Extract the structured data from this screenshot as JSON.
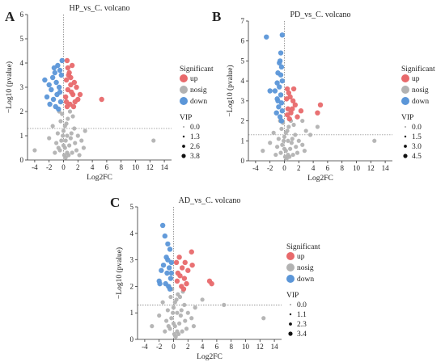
{
  "colors": {
    "up": "#e8696b",
    "nosig": "#b2b2b2",
    "down": "#5b96d8"
  },
  "chart_data": [
    {
      "panel_label": "A",
      "type": "scatter",
      "title": "HP_vs_C. volcano",
      "xlabel": "Log2FC",
      "ylabel": "−Log10 (pvalue)",
      "xlim": [
        -5,
        15
      ],
      "ylim": [
        0,
        6
      ],
      "xticks": [
        -4,
        -2,
        0,
        2,
        4,
        6,
        8,
        10,
        12,
        14
      ],
      "yticks": [
        0,
        1,
        2,
        3,
        4,
        5,
        6
      ],
      "threshold_y": 1.3,
      "threshold_x": 0,
      "legend": {
        "significant_title": "Significant",
        "significant_items": [
          "up",
          "nosig",
          "down"
        ],
        "vip_title": "VIP",
        "vip_items": [
          "0.0",
          "1.3",
          "2.6",
          "3.8"
        ]
      },
      "series": [
        {
          "name": "up",
          "points": [
            [
              0.5,
              4.1
            ],
            [
              0.8,
              3.6
            ],
            [
              1.2,
              3.9
            ],
            [
              0.4,
              3.3
            ],
            [
              1.0,
              3.1
            ],
            [
              1.5,
              3.2
            ],
            [
              0.6,
              2.9
            ],
            [
              1.3,
              2.7
            ],
            [
              2.0,
              2.5
            ],
            [
              0.9,
              2.3
            ],
            [
              1.6,
              2.4
            ],
            [
              0.3,
              2.6
            ],
            [
              1.1,
              2.8
            ],
            [
              5.3,
              2.5
            ],
            [
              0.7,
              3.5
            ],
            [
              1.8,
              3.0
            ],
            [
              0.5,
              2.2
            ],
            [
              1.4,
              2.2
            ],
            [
              2.3,
              2.7
            ],
            [
              1.0,
              3.4
            ],
            [
              0.6,
              3.8
            ],
            [
              0.4,
              2.4
            ]
          ]
        },
        {
          "name": "nosig",
          "points": [
            [
              0.0,
              1.2
            ],
            [
              0.2,
              0.5
            ],
            [
              -0.3,
              0.8
            ],
            [
              0.5,
              1.0
            ],
            [
              0.1,
              0.2
            ],
            [
              -0.5,
              0.4
            ],
            [
              0.8,
              0.6
            ],
            [
              1.0,
              0.9
            ],
            [
              -0.8,
              1.1
            ],
            [
              0.4,
              1.5
            ],
            [
              -0.2,
              1.9
            ],
            [
              0.6,
              1.7
            ],
            [
              1.5,
              1.3
            ],
            [
              -1.0,
              0.7
            ],
            [
              2.0,
              1.0
            ],
            [
              1.8,
              0.4
            ],
            [
              -1.5,
              1.4
            ],
            [
              0.3,
              0.1
            ],
            [
              -0.4,
              1.6
            ],
            [
              1.2,
              0.3
            ],
            [
              2.5,
              0.8
            ],
            [
              3.0,
              1.2
            ],
            [
              1.3,
              1.8
            ],
            [
              -0.6,
              2.0
            ],
            [
              0.9,
              2.0
            ],
            [
              0.0,
              0.6
            ],
            [
              0.2,
              1.4
            ],
            [
              -0.1,
              1.0
            ],
            [
              0.7,
              0.2
            ],
            [
              1.6,
              0.7
            ],
            [
              -1.2,
              0.3
            ],
            [
              -2.0,
              0.9
            ],
            [
              -4.0,
              0.4
            ],
            [
              12.5,
              0.8
            ],
            [
              2.8,
              0.5
            ],
            [
              0.5,
              0.3
            ],
            [
              1.1,
              1.1
            ],
            [
              -0.7,
              0.5
            ],
            [
              0.3,
              0.8
            ],
            [
              2.2,
              0.2
            ]
          ]
        },
        {
          "name": "down",
          "points": [
            [
              -1.5,
              3.4
            ],
            [
              -1.2,
              3.6
            ],
            [
              -0.8,
              3.9
            ],
            [
              -0.5,
              3.7
            ],
            [
              -1.0,
              3.2
            ],
            [
              -0.3,
              3.5
            ],
            [
              -2.0,
              3.1
            ],
            [
              -1.7,
              2.9
            ],
            [
              -0.9,
              2.7
            ],
            [
              -0.6,
              3.0
            ],
            [
              -2.3,
              2.6
            ],
            [
              -1.4,
              2.5
            ],
            [
              -0.4,
              2.4
            ],
            [
              -1.1,
              2.2
            ],
            [
              -0.7,
              2.1
            ],
            [
              -2.6,
              3.3
            ],
            [
              -0.2,
              4.1
            ],
            [
              -1.9,
              2.3
            ],
            [
              -0.5,
              2.8
            ],
            [
              -1.3,
              3.8
            ]
          ]
        }
      ]
    },
    {
      "panel_label": "B",
      "type": "scatter",
      "title": "PD_vs_C. volcano",
      "xlabel": "Log2FC",
      "ylabel": "−Log10 (pvalue)",
      "xlim": [
        -5,
        15
      ],
      "ylim": [
        0,
        7
      ],
      "xticks": [
        -4,
        -2,
        0,
        2,
        4,
        6,
        8,
        10,
        12,
        14
      ],
      "yticks": [
        0,
        1,
        2,
        3,
        4,
        5,
        6,
        7
      ],
      "threshold_y": 1.3,
      "threshold_x": 0,
      "legend": {
        "significant_title": "Significant",
        "significant_items": [
          "up",
          "nosig",
          "down"
        ],
        "vip_title": "VIP",
        "vip_items": [
          "0.0",
          "1.5",
          "3.0",
          "4.5"
        ]
      },
      "series": [
        {
          "name": "up",
          "points": [
            [
              0.4,
              3.6
            ],
            [
              0.8,
              3.2
            ],
            [
              1.2,
              3.0
            ],
            [
              0.5,
              2.6
            ],
            [
              1.5,
              2.8
            ],
            [
              0.9,
              2.4
            ],
            [
              0.3,
              3.1
            ],
            [
              1.8,
              2.2
            ],
            [
              2.3,
              2.5
            ],
            [
              5.0,
              2.8
            ],
            [
              4.6,
              2.4
            ],
            [
              0.6,
              3.4
            ],
            [
              1.1,
              2.6
            ],
            [
              0.7,
              2.1
            ],
            [
              1.3,
              3.6
            ],
            [
              0.4,
              2.3
            ]
          ]
        },
        {
          "name": "nosig",
          "points": [
            [
              0.0,
              1.2
            ],
            [
              0.2,
              0.5
            ],
            [
              -0.3,
              0.8
            ],
            [
              0.5,
              1.0
            ],
            [
              0.1,
              0.2
            ],
            [
              -0.5,
              0.4
            ],
            [
              0.8,
              0.6
            ],
            [
              1.0,
              0.9
            ],
            [
              -0.8,
              1.1
            ],
            [
              0.4,
              1.5
            ],
            [
              -0.2,
              1.9
            ],
            [
              0.6,
              1.7
            ],
            [
              1.5,
              1.3
            ],
            [
              -1.0,
              0.7
            ],
            [
              2.0,
              1.0
            ],
            [
              1.8,
              0.4
            ],
            [
              -1.5,
              1.4
            ],
            [
              0.3,
              0.1
            ],
            [
              -0.4,
              1.6
            ],
            [
              1.2,
              0.3
            ],
            [
              2.5,
              0.8
            ],
            [
              3.0,
              1.5
            ],
            [
              1.3,
              1.8
            ],
            [
              -0.6,
              2.0
            ],
            [
              0.9,
              2.0
            ],
            [
              0.0,
              0.6
            ],
            [
              0.2,
              1.4
            ],
            [
              -0.1,
              1.0
            ],
            [
              0.7,
              0.2
            ],
            [
              1.6,
              0.7
            ],
            [
              -1.2,
              0.3
            ],
            [
              -2.0,
              0.9
            ],
            [
              -3.0,
              0.5
            ],
            [
              12.5,
              1.0
            ],
            [
              2.8,
              0.5
            ],
            [
              0.5,
              0.3
            ],
            [
              1.1,
              1.1
            ],
            [
              4.6,
              1.7
            ],
            [
              2.5,
              2.0
            ],
            [
              3.6,
              1.3
            ]
          ]
        },
        {
          "name": "down",
          "points": [
            [
              -2.5,
              6.2
            ],
            [
              -0.3,
              6.3
            ],
            [
              -0.5,
              5.4
            ],
            [
              -0.7,
              4.9
            ],
            [
              -0.4,
              4.7
            ],
            [
              -0.9,
              4.4
            ],
            [
              -0.3,
              4.0
            ],
            [
              -1.3,
              3.5
            ],
            [
              -0.7,
              3.7
            ],
            [
              -0.5,
              3.3
            ],
            [
              -1.0,
              3.1
            ],
            [
              -0.4,
              2.9
            ],
            [
              -0.8,
              2.7
            ],
            [
              -0.3,
              2.5
            ],
            [
              -1.1,
              2.4
            ],
            [
              -0.6,
              2.2
            ],
            [
              -0.4,
              2.0
            ],
            [
              -2.0,
              3.5
            ],
            [
              -0.5,
              4.3
            ],
            [
              -1.0,
              3.9
            ],
            [
              -0.6,
              5.0
            ],
            [
              -0.9,
              3.0
            ]
          ]
        }
      ]
    },
    {
      "panel_label": "C",
      "type": "scatter",
      "title": "AD_vs_C. volcano",
      "xlabel": "Log2FC",
      "ylabel": "−Log10 (pvalue)",
      "xlim": [
        -5,
        15
      ],
      "ylim": [
        0,
        5
      ],
      "xticks": [
        -4,
        -2,
        0,
        2,
        4,
        6,
        8,
        10,
        12,
        14
      ],
      "yticks": [
        0,
        1,
        2,
        3,
        4,
        5
      ],
      "threshold_y": 1.3,
      "threshold_x": 0,
      "legend": {
        "significant_title": "Significant",
        "significant_items": [
          "up",
          "nosig",
          "down"
        ],
        "vip_title": "VIP",
        "vip_items": [
          "0.0",
          "1.1",
          "2.3",
          "3.4"
        ]
      },
      "series": [
        {
          "name": "up",
          "points": [
            [
              0.4,
              2.9
            ],
            [
              0.8,
              3.1
            ],
            [
              1.2,
              2.7
            ],
            [
              0.6,
              2.5
            ],
            [
              1.5,
              2.3
            ],
            [
              2.5,
              3.3
            ],
            [
              2.6,
              2.8
            ],
            [
              1.1,
              2.0
            ],
            [
              1.8,
              2.1
            ],
            [
              5.0,
              2.2
            ],
            [
              5.3,
              2.1
            ],
            [
              0.5,
              2.2
            ],
            [
              2.0,
              2.6
            ],
            [
              0.9,
              2.4
            ],
            [
              1.4,
              1.9
            ],
            [
              1.6,
              2.9
            ]
          ]
        },
        {
          "name": "nosig",
          "points": [
            [
              0.0,
              1.2
            ],
            [
              0.2,
              0.5
            ],
            [
              -0.3,
              0.8
            ],
            [
              0.5,
              1.0
            ],
            [
              0.1,
              0.2
            ],
            [
              -0.5,
              0.4
            ],
            [
              0.8,
              0.6
            ],
            [
              1.0,
              0.9
            ],
            [
              -0.8,
              1.1
            ],
            [
              0.4,
              1.5
            ],
            [
              -0.2,
              1.9
            ],
            [
              0.6,
              1.7
            ],
            [
              1.5,
              1.3
            ],
            [
              -1.0,
              0.7
            ],
            [
              2.0,
              1.0
            ],
            [
              1.8,
              0.4
            ],
            [
              -1.5,
              1.4
            ],
            [
              0.3,
              0.1
            ],
            [
              -0.4,
              1.6
            ],
            [
              1.2,
              0.3
            ],
            [
              2.5,
              0.8
            ],
            [
              3.0,
              1.2
            ],
            [
              1.3,
              1.8
            ],
            [
              -0.6,
              2.0
            ],
            [
              0.9,
              1.6
            ],
            [
              0.0,
              0.6
            ],
            [
              0.2,
              1.4
            ],
            [
              -0.1,
              1.0
            ],
            [
              0.7,
              0.2
            ],
            [
              1.6,
              0.7
            ],
            [
              -1.2,
              0.3
            ],
            [
              -2.0,
              0.9
            ],
            [
              -3.0,
              0.5
            ],
            [
              12.5,
              0.8
            ],
            [
              7.0,
              1.3
            ],
            [
              4.0,
              1.5
            ],
            [
              2.8,
              0.5
            ],
            [
              0.5,
              0.3
            ],
            [
              1.1,
              1.1
            ],
            [
              -0.7,
              0.5
            ]
          ]
        },
        {
          "name": "down",
          "points": [
            [
              -1.5,
              4.3
            ],
            [
              -1.2,
              3.9
            ],
            [
              -0.8,
              3.6
            ],
            [
              -0.5,
              3.4
            ],
            [
              -1.0,
              3.1
            ],
            [
              -0.3,
              2.9
            ],
            [
              -1.7,
              2.6
            ],
            [
              -0.9,
              2.5
            ],
            [
              -0.6,
              2.7
            ],
            [
              -2.0,
              2.2
            ],
            [
              -0.4,
              2.3
            ],
            [
              -1.1,
              2.1
            ],
            [
              -0.7,
              2.0
            ],
            [
              -0.3,
              2.5
            ],
            [
              -1.4,
              2.8
            ],
            [
              -0.5,
              1.9
            ],
            [
              -1.9,
              2.1
            ],
            [
              -0.8,
              3.0
            ]
          ]
        }
      ]
    }
  ]
}
